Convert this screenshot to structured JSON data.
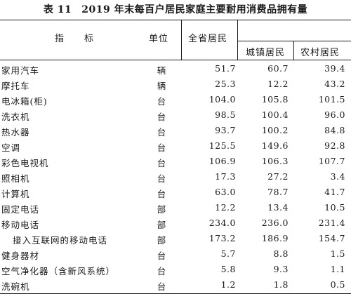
{
  "title": {
    "table_no": "表 11",
    "text": "2019 年末每百户居民家庭主要耐用消费品拥有量"
  },
  "headers": {
    "indicator": "指　　标",
    "unit": "单位",
    "province": "全省居民",
    "urban": "城镇居民",
    "rural": "农村居民"
  },
  "rows": [
    {
      "name": "家用汽车",
      "unit": "辆",
      "province": "51.7",
      "urban": "60.7",
      "rural": "39.4"
    },
    {
      "name": "摩托车",
      "unit": "辆",
      "province": "25.3",
      "urban": "12.2",
      "rural": "43.2"
    },
    {
      "name": "电冰箱(柜)",
      "unit": "台",
      "province": "104.0",
      "urban": "105.8",
      "rural": "101.5"
    },
    {
      "name": "洗衣机",
      "unit": "台",
      "province": "98.5",
      "urban": "100.4",
      "rural": "96.0"
    },
    {
      "name": "热水器",
      "unit": "台",
      "province": "93.7",
      "urban": "100.2",
      "rural": "84.8"
    },
    {
      "name": "空调",
      "unit": "台",
      "province": "125.5",
      "urban": "149.6",
      "rural": "92.8"
    },
    {
      "name": "彩色电视机",
      "unit": "台",
      "province": "106.9",
      "urban": "106.3",
      "rural": "107.7"
    },
    {
      "name": "照相机",
      "unit": "台",
      "province": "17.3",
      "urban": "27.2",
      "rural": "3.4"
    },
    {
      "name": "计算机",
      "unit": "台",
      "province": "63.0",
      "urban": "78.7",
      "rural": "41.7"
    },
    {
      "name": "固定电话",
      "unit": "部",
      "province": "12.2",
      "urban": "13.4",
      "rural": "10.5"
    },
    {
      "name": "移动电话",
      "unit": "部",
      "province": "234.0",
      "urban": "236.0",
      "rural": "231.4"
    },
    {
      "name": "接入互联网的移动电话",
      "unit": "部",
      "province": "173.2",
      "urban": "186.9",
      "rural": "154.7"
    },
    {
      "name": "健身器材",
      "unit": "台",
      "province": "5.7",
      "urban": "8.8",
      "rural": "1.5"
    },
    {
      "name": "空气净化器（含新风系统）",
      "unit": "台",
      "province": "5.8",
      "urban": "9.3",
      "rural": "1.1"
    },
    {
      "name": "洗碗机",
      "unit": "台",
      "province": "1.2",
      "urban": "1.8",
      "rural": "0.5"
    }
  ]
}
